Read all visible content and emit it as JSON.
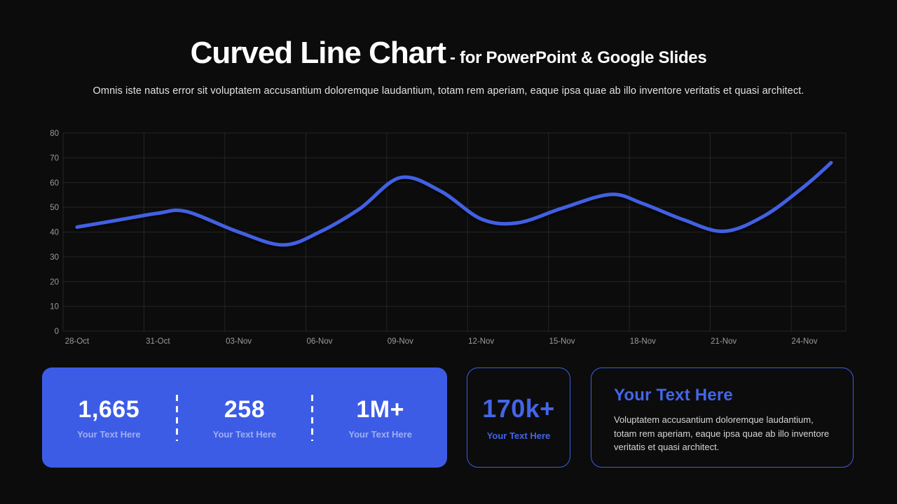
{
  "theme": {
    "background": "#0c0c0c",
    "accent": "#3e5ee0",
    "accent_text": "#4365e8",
    "card_fill": "#3d5ce5",
    "line_color": "#4261e3",
    "grid_color": "rgba(255,255,255,0.10)",
    "axis_text_color": "#9b9b9b"
  },
  "header": {
    "title": "Curved Line Chart",
    "title_suffix": "- for PowerPoint & Google Slides",
    "description": "Omnis iste natus error sit voluptatem accusantium doloremque laudantium, totam rem aperiam, eaque ipsa quae ab illo inventore veritatis et quasi architect."
  },
  "chart_data": {
    "type": "line",
    "title": "",
    "xlabel": "",
    "ylabel": "",
    "categories": [
      "28-Oct",
      "31-Oct",
      "03-Nov",
      "06-Nov",
      "09-Nov",
      "12-Nov",
      "15-Nov",
      "18-Nov",
      "21-Nov",
      "24-Nov"
    ],
    "ylim": [
      0,
      80
    ],
    "ytick_step": 10,
    "grid": true,
    "legend": false,
    "smooth": true,
    "series": [
      {
        "name": "series-1",
        "values_at_ticks": [
          42,
          47.6,
          40,
          40,
          62,
          45.3,
          49.6,
          51.5,
          40.3,
          58.5
        ],
        "points": [
          {
            "i": 0,
            "v": 42
          },
          {
            "i": 0.5,
            "v": 44.8
          },
          {
            "i": 1,
            "v": 47.6
          },
          {
            "i": 1.35,
            "v": 48.3
          },
          {
            "i": 2,
            "v": 40
          },
          {
            "i": 2.55,
            "v": 34.8
          },
          {
            "i": 3,
            "v": 40
          },
          {
            "i": 3.5,
            "v": 49.5
          },
          {
            "i": 4,
            "v": 62
          },
          {
            "i": 4.5,
            "v": 56.5
          },
          {
            "i": 5,
            "v": 45.3
          },
          {
            "i": 5.45,
            "v": 43.7
          },
          {
            "i": 6,
            "v": 49.6
          },
          {
            "i": 6.6,
            "v": 55.2
          },
          {
            "i": 7,
            "v": 51.5
          },
          {
            "i": 7.5,
            "v": 45
          },
          {
            "i": 8,
            "v": 40.3
          },
          {
            "i": 8.5,
            "v": 46.5
          },
          {
            "i": 9,
            "v": 58.5
          },
          {
            "i": 9.33,
            "v": 68
          }
        ]
      }
    ]
  },
  "cards": {
    "stats": {
      "items": [
        {
          "value": "1,665",
          "label": "Your Text Here"
        },
        {
          "value": "258",
          "label": "Your Text Here"
        },
        {
          "value": "1M+",
          "label": "Your Text Here"
        }
      ]
    },
    "highlight": {
      "value": "170k+",
      "label": "Your Text Here"
    },
    "info": {
      "title": "Your Text Here",
      "body": "Voluptatem accusantium doloremque laudantium, totam rem aperiam, eaque ipsa quae ab illo inventore veritatis et quasi architect."
    }
  }
}
